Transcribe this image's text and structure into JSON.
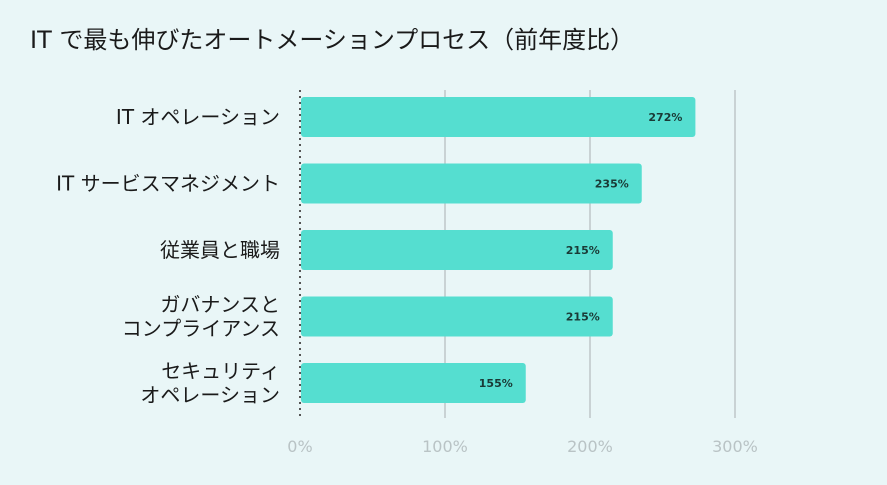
{
  "title": "IT で最も伸びたオートメーションプロセス（前年度比）",
  "colors": {
    "background": "#e9f6f7",
    "bar": "#55ded0",
    "grid": "#c9d2d4",
    "axis": "#555555"
  },
  "chart_data": {
    "type": "bar",
    "orientation": "horizontal",
    "title": "IT で最も伸びたオートメーションプロセス（前年度比）",
    "categories": [
      [
        "IT オペレーション"
      ],
      [
        "IT サービスマネジメント"
      ],
      [
        "従業員と職場"
      ],
      [
        "ガバナンスと",
        "コンプライアンス"
      ],
      [
        "セキュリティ",
        "オペレーション"
      ]
    ],
    "values": [
      272,
      235,
      215,
      215,
      155
    ],
    "value_labels": [
      "272%",
      "235%",
      "215%",
      "215%",
      "155%"
    ],
    "xlim": [
      0,
      300
    ],
    "xticks": [
      0,
      100,
      200,
      300
    ],
    "xtick_labels": [
      "0%",
      "100%",
      "200%",
      "300%"
    ],
    "grid": true
  }
}
